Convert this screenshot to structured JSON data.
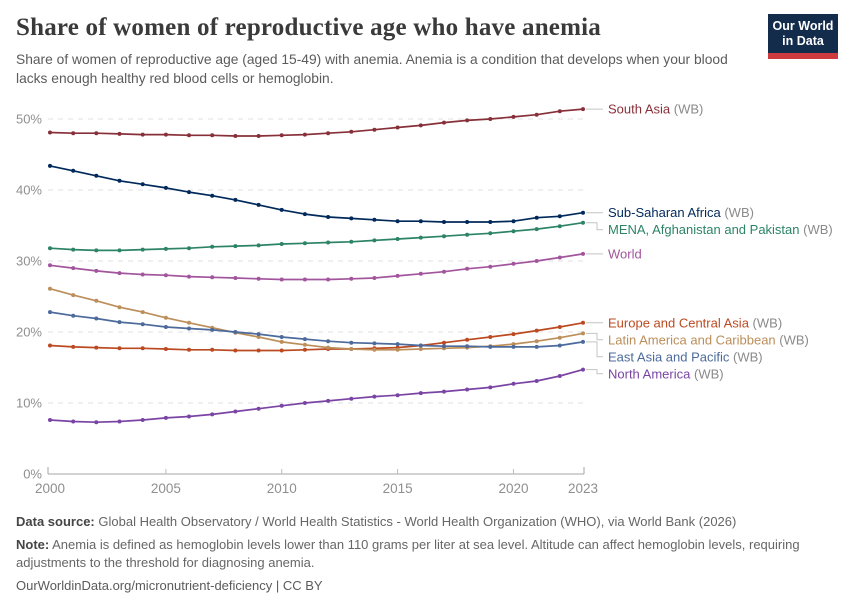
{
  "chart_data": {
    "type": "line",
    "title": "Share of women of reproductive age who have anemia",
    "subtitle": "Share of women of reproductive age (aged 15-49) with anemia. Anemia is a condition that develops when your blood lacks enough healthy red blood cells or hemoglobin.",
    "xlabel": "",
    "ylabel": "",
    "x": [
      2000,
      2001,
      2002,
      2003,
      2004,
      2005,
      2006,
      2007,
      2008,
      2009,
      2010,
      2011,
      2012,
      2013,
      2014,
      2015,
      2016,
      2017,
      2018,
      2019,
      2020,
      2021,
      2022,
      2023
    ],
    "x_ticks": [
      2000,
      2005,
      2010,
      2015,
      2020,
      2023
    ],
    "y_ticks": [
      0,
      10,
      20,
      30,
      40,
      50
    ],
    "y_tick_suffix": "%",
    "ylim": [
      0,
      52
    ],
    "grid": "horizontal-dashed",
    "legend_position": "right-end-labels",
    "series": [
      {
        "name": "South Asia",
        "suffix": " (WB)",
        "color": "#883039",
        "values": [
          48.1,
          48.0,
          48.0,
          47.9,
          47.8,
          47.8,
          47.7,
          47.7,
          47.6,
          47.6,
          47.7,
          47.8,
          48.0,
          48.2,
          48.5,
          48.8,
          49.1,
          49.5,
          49.8,
          50.0,
          50.3,
          50.6,
          51.1,
          51.4
        ]
      },
      {
        "name": "Sub-Saharan Africa",
        "suffix": " (WB)",
        "color": "#00295B",
        "values": [
          43.4,
          42.7,
          42.0,
          41.3,
          40.8,
          40.3,
          39.7,
          39.2,
          38.6,
          37.9,
          37.2,
          36.6,
          36.2,
          36.0,
          35.8,
          35.6,
          35.6,
          35.5,
          35.5,
          35.5,
          35.6,
          36.1,
          36.3,
          36.8
        ]
      },
      {
        "name": "MENA, Afghanistan and Pakistan",
        "suffix": " (WB)",
        "color": "#2C8465",
        "values": [
          31.8,
          31.6,
          31.5,
          31.5,
          31.6,
          31.7,
          31.8,
          32.0,
          32.1,
          32.2,
          32.4,
          32.5,
          32.6,
          32.7,
          32.9,
          33.1,
          33.3,
          33.5,
          33.7,
          33.9,
          34.2,
          34.5,
          34.9,
          35.4
        ]
      },
      {
        "name": "World",
        "suffix": "",
        "color": "#A2559C",
        "values": [
          29.4,
          29.0,
          28.6,
          28.3,
          28.1,
          28.0,
          27.8,
          27.7,
          27.6,
          27.5,
          27.4,
          27.4,
          27.4,
          27.5,
          27.6,
          27.9,
          28.2,
          28.5,
          28.9,
          29.2,
          29.6,
          30.0,
          30.5,
          31.0
        ]
      },
      {
        "name": "Europe and Central Asia",
        "suffix": " (WB)",
        "color": "#BB4A21",
        "values": [
          18.1,
          17.9,
          17.8,
          17.7,
          17.7,
          17.6,
          17.5,
          17.5,
          17.4,
          17.4,
          17.4,
          17.5,
          17.6,
          17.6,
          17.7,
          17.8,
          18.1,
          18.5,
          18.9,
          19.3,
          19.7,
          20.2,
          20.7,
          21.3
        ]
      },
      {
        "name": "Latin America and Caribbean",
        "suffix": " (WB)",
        "color": "#BC8E5A",
        "values": [
          26.1,
          25.2,
          24.4,
          23.5,
          22.8,
          22.0,
          21.3,
          20.6,
          19.9,
          19.3,
          18.6,
          18.2,
          17.8,
          17.6,
          17.5,
          17.5,
          17.6,
          17.7,
          17.8,
          18.0,
          18.3,
          18.7,
          19.2,
          19.8
        ]
      },
      {
        "name": "East Asia and Pacific",
        "suffix": " (WB)",
        "color": "#4C6A9C",
        "values": [
          22.8,
          22.3,
          21.9,
          21.4,
          21.1,
          20.7,
          20.5,
          20.3,
          20.0,
          19.7,
          19.3,
          19.0,
          18.7,
          18.5,
          18.4,
          18.3,
          18.1,
          18.0,
          18.0,
          17.9,
          17.9,
          17.9,
          18.1,
          18.6
        ]
      },
      {
        "name": "North America",
        "suffix": " (WB)",
        "color": "#7A44A4",
        "values": [
          7.6,
          7.4,
          7.3,
          7.4,
          7.6,
          7.9,
          8.1,
          8.4,
          8.8,
          9.2,
          9.6,
          10.0,
          10.3,
          10.6,
          10.9,
          11.1,
          11.4,
          11.6,
          11.9,
          12.2,
          12.7,
          13.1,
          13.8,
          14.7
        ]
      }
    ]
  },
  "header": {
    "logo": {
      "line1": "Our World",
      "line2": "in Data"
    }
  },
  "footer": {
    "data_source_label": "Data source:",
    "data_source": "Global Health Observatory / World Health Statistics - World Health Organization (WHO), via World Bank (2026)",
    "note_label": "Note:",
    "note": "Anemia is defined as hemoglobin levels lower than 110 grams per liter at sea level. Altitude can affect hemoglobin levels, requiring adjustments to the threshold for diagnosing anemia.",
    "link": "OurWorldinData.org/micronutrient-deficiency | CC BY"
  }
}
